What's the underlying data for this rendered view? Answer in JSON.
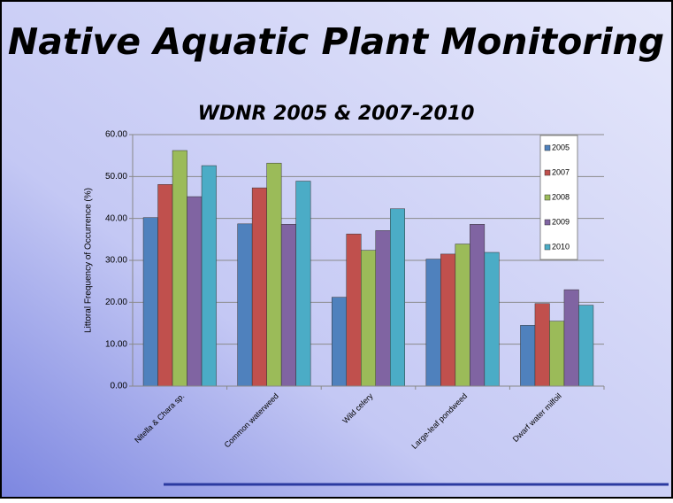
{
  "chart_data": {
    "type": "bar",
    "title": "Native Aquatic Plant Monitoring",
    "subtitle": "WDNR 2005 & 2007-2010",
    "y_label": "Littoral Frequency of Occurrence (%)",
    "categories": [
      "Nitella & Chara sp.",
      "Common waterweed",
      "Wild celery",
      "Large-leaf pondweed",
      "Dwarf water milfoil"
    ],
    "series": [
      {
        "name": "2005",
        "color": "#4f81bd",
        "values": [
          40.2,
          38.7,
          21.2,
          30.3,
          14.5
        ]
      },
      {
        "name": "2007",
        "color": "#c0504d",
        "values": [
          48.1,
          47.3,
          36.3,
          31.5,
          19.7
        ]
      },
      {
        "name": "2008",
        "color": "#9bbb59",
        "values": [
          56.2,
          53.2,
          32.4,
          33.9,
          15.5
        ]
      },
      {
        "name": "2009",
        "color": "#8064a2",
        "values": [
          45.2,
          38.6,
          37.1,
          38.6,
          23.0
        ]
      },
      {
        "name": "2010",
        "color": "#4bacc6",
        "values": [
          52.6,
          48.9,
          42.3,
          31.9,
          19.3
        ]
      }
    ],
    "ylim": [
      0,
      60
    ],
    "yticks": [
      {
        "value": 0,
        "label": "0.00"
      },
      {
        "value": 10,
        "label": "10.00"
      },
      {
        "value": 20,
        "label": "20.00"
      },
      {
        "value": 30,
        "label": "30.00"
      },
      {
        "value": 40,
        "label": "40.00"
      },
      {
        "value": 50,
        "label": "50.00"
      },
      {
        "value": 60,
        "label": "60.00"
      }
    ],
    "grid": true,
    "legend": "upper right"
  }
}
